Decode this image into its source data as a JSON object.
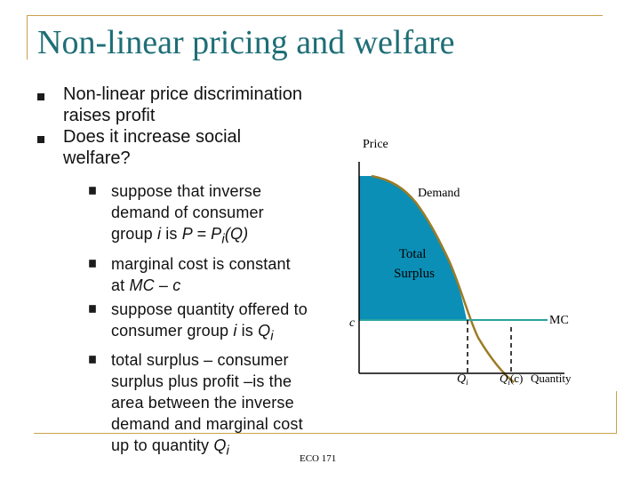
{
  "slide": {
    "title": "Non-linear pricing and welfare",
    "footer": "ECO 171",
    "accent_color": "#1e6e76",
    "frame_color": "#c9a24a"
  },
  "bullets": [
    {
      "text": "Non-linear price discrimination raises profit"
    },
    {
      "text": "Does it increase social welfare?"
    }
  ],
  "sub_bullets": [
    {
      "lead": "suppose that inverse demand of consumer group ",
      "var1": "i",
      "mid": " is ",
      "formula": "P = P",
      "sub": "i",
      "tail": "(Q)"
    },
    {
      "lead": "marginal cost is constant at ",
      "formula": "MC – c"
    },
    {
      "lead": "suppose quantity offered to consumer group ",
      "var1": "i",
      "mid": " is ",
      "formula": "Q",
      "sub": "i"
    },
    {
      "lead": "total surplus – consumer surplus plus profit –is the area between the inverse demand and marginal cost up to quantity ",
      "formula": "Q",
      "sub": "i"
    }
  ],
  "diagram": {
    "price_label": "Price",
    "demand_label": "Demand",
    "surplus_label_line1": "Total",
    "surplus_label_line2": "Surplus",
    "c_label": "c",
    "mc_label": "MC",
    "qi_base": "Q",
    "qi_sub": "i",
    "qic_base": "Q",
    "qic_sub": "i",
    "qic_suffix": "(c)",
    "quantity_label": "Quantity",
    "surplus_fill": "#0b8fb6",
    "demand_color": "#9c7b26",
    "mc_color": "#2aa3a0"
  }
}
